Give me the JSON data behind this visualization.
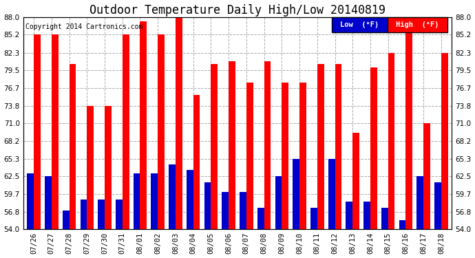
{
  "title": "Outdoor Temperature Daily High/Low 20140819",
  "copyright": "Copyright 2014 Cartronics.com",
  "legend_low": "Low  (°F)",
  "legend_high": "High  (°F)",
  "dates": [
    "07/26",
    "07/27",
    "07/28",
    "07/29",
    "07/30",
    "07/31",
    "08/01",
    "08/02",
    "08/03",
    "08/04",
    "08/05",
    "08/06",
    "08/07",
    "08/08",
    "08/09",
    "08/10",
    "08/11",
    "08/12",
    "08/13",
    "08/14",
    "08/15",
    "08/16",
    "08/17",
    "08/18"
  ],
  "highs": [
    85.2,
    85.2,
    80.5,
    73.8,
    73.8,
    85.2,
    87.3,
    85.2,
    88.0,
    75.5,
    80.5,
    81.0,
    77.5,
    81.0,
    77.5,
    77.5,
    80.5,
    80.5,
    69.5,
    80.0,
    82.3,
    86.0,
    71.0,
    82.3
  ],
  "lows": [
    63.0,
    62.5,
    57.0,
    58.8,
    58.8,
    58.8,
    63.0,
    63.0,
    64.4,
    63.5,
    61.5,
    60.0,
    60.0,
    57.5,
    62.5,
    65.3,
    57.5,
    65.3,
    58.5,
    58.5,
    57.5,
    55.5,
    62.5,
    61.5
  ],
  "bar_width": 0.38,
  "ylim_min": 54.0,
  "ylim_max": 88.0,
  "yticks": [
    54.0,
    56.8,
    59.7,
    62.5,
    65.3,
    68.2,
    71.0,
    73.8,
    76.7,
    79.5,
    82.3,
    85.2,
    88.0
  ],
  "high_color": "#ff0000",
  "low_color": "#0000cc",
  "bg_color": "#ffffff",
  "grid_color": "#aaaaaa",
  "title_fontsize": 12,
  "tick_fontsize": 7.5,
  "legend_fontsize": 8
}
